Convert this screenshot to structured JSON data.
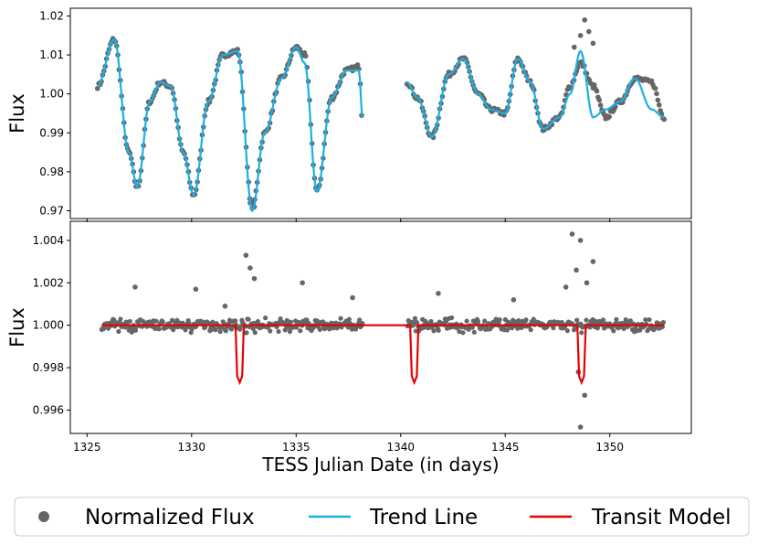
{
  "figure": {
    "xlabel": "TESS Julian Date (in days)",
    "colors": {
      "flux": "#666666",
      "trend": "#1ab0e6",
      "transit": "#e60000"
    }
  },
  "chart_data": [
    {
      "type": "scatter",
      "panel": "top",
      "ylabel": "Flux",
      "xlim": [
        1324.2,
        1353.9
      ],
      "ylim": [
        0.968,
        1.022
      ],
      "x_ticks": [
        1325,
        1330,
        1335,
        1340,
        1345,
        1350
      ],
      "y_ticks": [
        0.97,
        0.98,
        0.99,
        1.0,
        1.01,
        1.02
      ],
      "y_tick_labels": [
        "0.97",
        "0.98",
        "0.99",
        "1.00",
        "1.01",
        "1.02"
      ],
      "gaps": [
        [
          1338.2,
          1340.3
        ]
      ],
      "series": [
        {
          "name": "Normalized Flux",
          "kind": "scatter",
          "x": [
            1325.5,
            1326.3,
            1327.0,
            1327.4,
            1328.0,
            1328.5,
            1329.0,
            1329.6,
            1330.1,
            1330.8,
            1331.5,
            1332.2,
            1332.9,
            1333.5,
            1334.3,
            1335.0,
            1335.4,
            1336.0,
            1336.7,
            1337.4,
            1338.0,
            1338.2,
            1340.3,
            1340.8,
            1341.5,
            1342.3,
            1343.0,
            1343.7,
            1344.3,
            1345.0,
            1345.6,
            1346.2,
            1346.8,
            1347.6,
            1348.1,
            1348.6,
            1349.2,
            1349.8,
            1350.5,
            1351.2,
            1352.0,
            1352.6
          ],
          "y": [
            1.002,
            1.014,
            0.985,
            0.976,
            0.998,
            1.003,
            1.002,
            0.985,
            0.974,
            0.998,
            1.01,
            1.011,
            0.971,
            0.99,
            1.004,
            1.012,
            1.01,
            0.975,
            0.999,
            1.006,
            1.007,
            0.991,
            1.003,
            0.999,
            0.989,
            1.005,
            1.009,
            1.0,
            0.996,
            0.995,
            1.009,
            1.003,
            0.991,
            0.994,
            1.002,
            1.008,
            1.002,
            0.994,
            0.998,
            1.004,
            1.003,
            0.994
          ]
        },
        {
          "name": "Trend Line",
          "kind": "line",
          "x": [
            1325.5,
            1326.3,
            1327.0,
            1327.4,
            1328.0,
            1328.5,
            1329.0,
            1329.6,
            1330.1,
            1330.8,
            1331.5,
            1332.2,
            1332.9,
            1333.5,
            1334.3,
            1335.0,
            1335.4,
            1336.0,
            1336.7,
            1337.4,
            1338.0,
            1338.2,
            1340.3,
            1340.8,
            1341.5,
            1342.3,
            1343.0,
            1343.7,
            1344.3,
            1345.0,
            1345.6,
            1346.2,
            1346.8,
            1347.6,
            1348.1,
            1348.6,
            1349.2,
            1349.8,
            1350.5,
            1351.2,
            1352.0,
            1352.6
          ],
          "y": [
            1.002,
            1.014,
            0.985,
            0.976,
            0.998,
            1.003,
            1.002,
            0.985,
            0.974,
            0.998,
            1.01,
            1.011,
            0.97,
            0.99,
            1.004,
            1.012,
            1.008,
            0.975,
            0.999,
            1.006,
            1.006,
            0.992,
            1.003,
            0.999,
            0.989,
            1.005,
            1.009,
            1.0,
            0.996,
            0.995,
            1.009,
            1.003,
            0.991,
            0.994,
            1.0,
            1.011,
            0.994,
            0.996,
            0.998,
            1.004,
            0.996,
            0.994
          ]
        }
      ],
      "outliers": {
        "x": [
          1332.8,
          1333.0,
          1348.3,
          1348.6,
          1348.8,
          1349.0,
          1349.2
        ],
        "y": [
          0.972,
          0.971,
          1.012,
          1.015,
          1.019,
          1.016,
          1.013
        ]
      }
    },
    {
      "type": "scatter",
      "panel": "bottom",
      "ylabel": "Flux",
      "xlim": [
        1324.2,
        1353.9
      ],
      "ylim": [
        0.9949,
        1.0049
      ],
      "x_ticks": [
        1325,
        1330,
        1335,
        1340,
        1345,
        1350
      ],
      "x_tick_labels": [
        "1325",
        "1330",
        "1335",
        "1340",
        "1345",
        "1350"
      ],
      "y_ticks": [
        0.996,
        0.998,
        1.0,
        1.002,
        1.004
      ],
      "y_tick_labels": [
        "0.996",
        "0.998",
        "1.000",
        "1.002",
        "1.004"
      ],
      "gaps": [
        [
          1338.2,
          1340.3
        ]
      ],
      "series": [
        {
          "name": "Transit Model",
          "kind": "line",
          "x": [
            1325.7,
            1332.1,
            1332.18,
            1332.3,
            1332.42,
            1332.5,
            1340.45,
            1340.53,
            1340.65,
            1340.77,
            1340.85,
            1348.45,
            1348.53,
            1348.65,
            1348.77,
            1348.85,
            1352.6
          ],
          "y": [
            1.0,
            1.0,
            0.9976,
            0.9973,
            0.9976,
            1.0,
            1.0,
            0.9976,
            0.9973,
            0.9976,
            1.0,
            1.0,
            0.9976,
            0.9973,
            0.9976,
            1.0,
            1.0
          ]
        }
      ],
      "outliers": {
        "x": [
          1327.3,
          1330.2,
          1331.6,
          1332.6,
          1332.8,
          1333.0,
          1335.3,
          1337.7,
          1341.8,
          1345.4,
          1347.9,
          1348.2,
          1348.4,
          1348.6,
          1348.9,
          1349.2,
          1348.6,
          1348.8,
          1348.5
        ],
        "y": [
          1.0018,
          1.0017,
          1.0009,
          1.0033,
          1.0027,
          1.0022,
          1.002,
          1.0013,
          1.0015,
          1.0012,
          1.0018,
          1.0043,
          1.0026,
          1.004,
          1.002,
          1.003,
          0.9952,
          0.9967,
          0.9978
        ]
      }
    }
  ],
  "legend": {
    "placement": "bottom",
    "items": [
      {
        "label": "Normalized Flux",
        "kind": "marker",
        "color": "#666666"
      },
      {
        "label": "Trend Line",
        "kind": "line",
        "color": "#1ab0e6"
      },
      {
        "label": "Transit Model",
        "kind": "line",
        "color": "#e60000"
      }
    ]
  }
}
